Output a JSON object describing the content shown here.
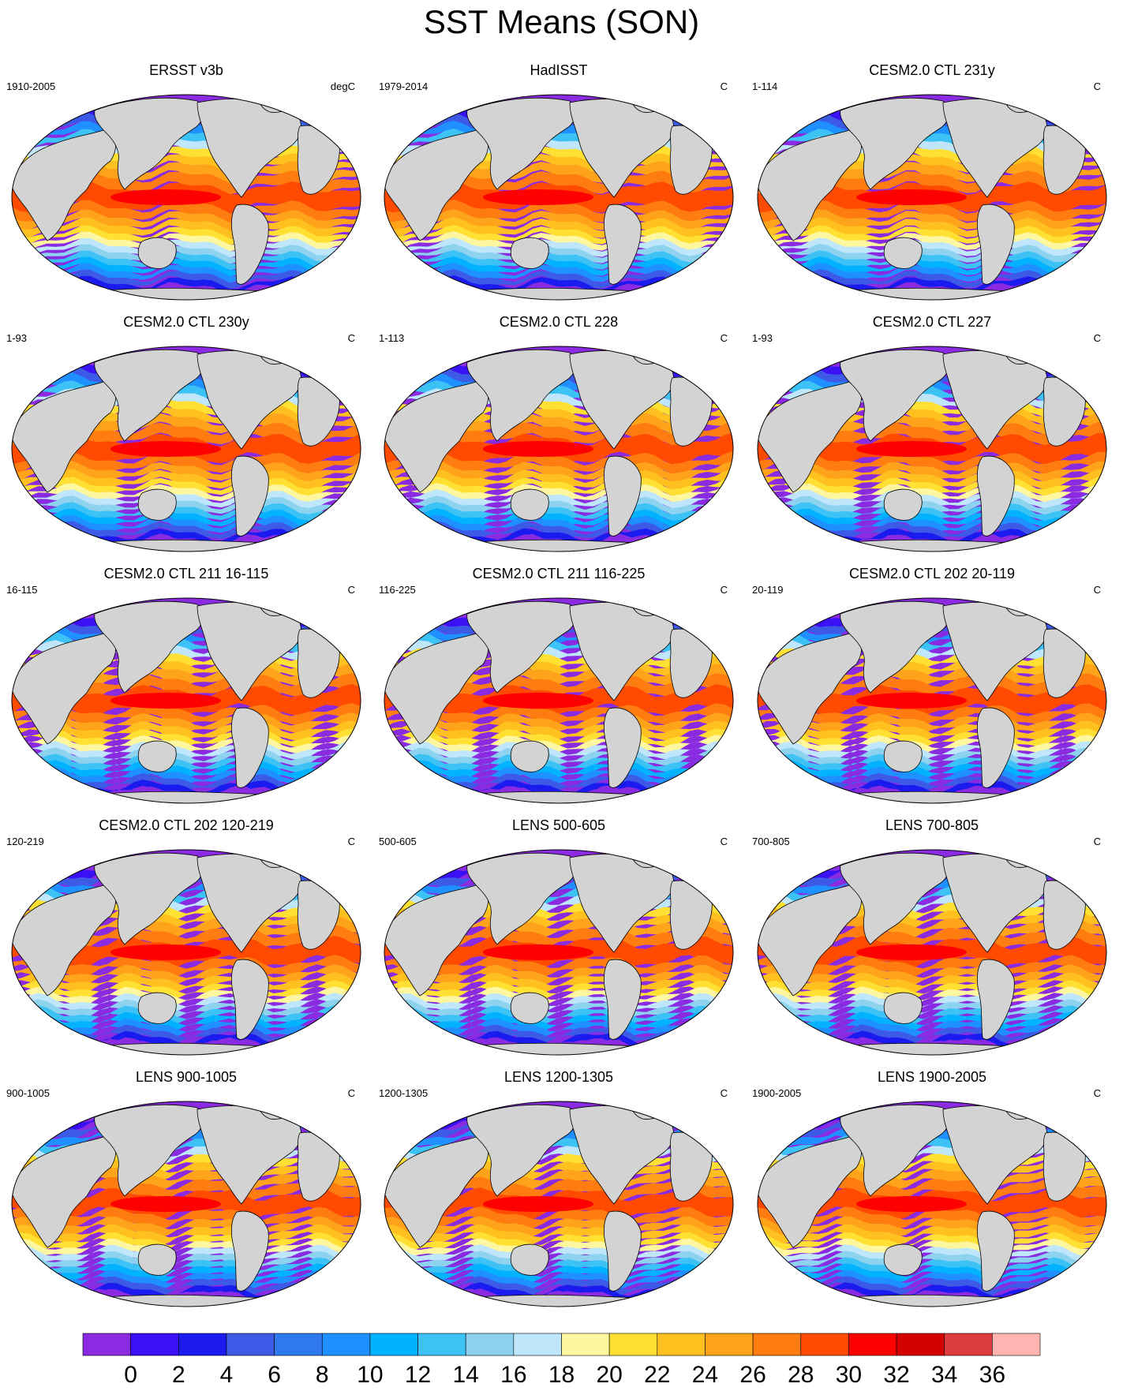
{
  "figure": {
    "title": "SST Means (SON)"
  },
  "panels": [
    {
      "title": "ERSST v3b",
      "period": "1910-2005",
      "units": "degC"
    },
    {
      "title": "HadISST",
      "period": "1979-2014",
      "units": "C"
    },
    {
      "title": "CESM2.0 CTL 231y",
      "period": "1-114",
      "units": "C"
    },
    {
      "title": "CESM2.0 CTL 230y",
      "period": "1-93",
      "units": "C"
    },
    {
      "title": "CESM2.0 CTL 228",
      "period": "1-113",
      "units": "C"
    },
    {
      "title": "CESM2.0 CTL 227",
      "period": "1-93",
      "units": "C"
    },
    {
      "title": "CESM2.0 CTL 211 16-115",
      "period": "16-115",
      "units": "C"
    },
    {
      "title": "CESM2.0 CTL 211 116-225",
      "period": "116-225",
      "units": "C"
    },
    {
      "title": "CESM2.0 CTL 202 20-119",
      "period": "20-119",
      "units": "C"
    },
    {
      "title": "CESM2.0 CTL 202 120-219",
      "period": "120-219",
      "units": "C"
    },
    {
      "title": "LENS 500-605",
      "period": "500-605",
      "units": "C"
    },
    {
      "title": "LENS 700-805",
      "period": "700-805",
      "units": "C"
    },
    {
      "title": "LENS 900-1005",
      "period": "900-1005",
      "units": "C"
    },
    {
      "title": "LENS 1200-1305",
      "period": "1200-1305",
      "units": "C"
    },
    {
      "title": "LENS 1900-2005",
      "period": "1900-2005",
      "units": "C"
    }
  ],
  "colorbar": {
    "levels": [
      "0",
      "2",
      "4",
      "6",
      "8",
      "10",
      "12",
      "14",
      "16",
      "18",
      "20",
      "22",
      "24",
      "26",
      "28",
      "30",
      "32",
      "34",
      "36"
    ],
    "colors": [
      "#8a2be2",
      "#3a10f5",
      "#1b1bf0",
      "#3c5ae6",
      "#2f78ee",
      "#1e90ff",
      "#00b2ff",
      "#3cc2f5",
      "#8dd3f0",
      "#bfe6fa",
      "#fff7a0",
      "#ffe033",
      "#ffc020",
      "#ffa31a",
      "#ff7c10",
      "#ff4a00",
      "#ff0000",
      "#d40000",
      "#dd3c3c",
      "#ffb3b3"
    ]
  },
  "map_style": {
    "land_color": "#d3d3d3",
    "missing_color": "#ffffff",
    "outline_color": "#000000"
  }
}
